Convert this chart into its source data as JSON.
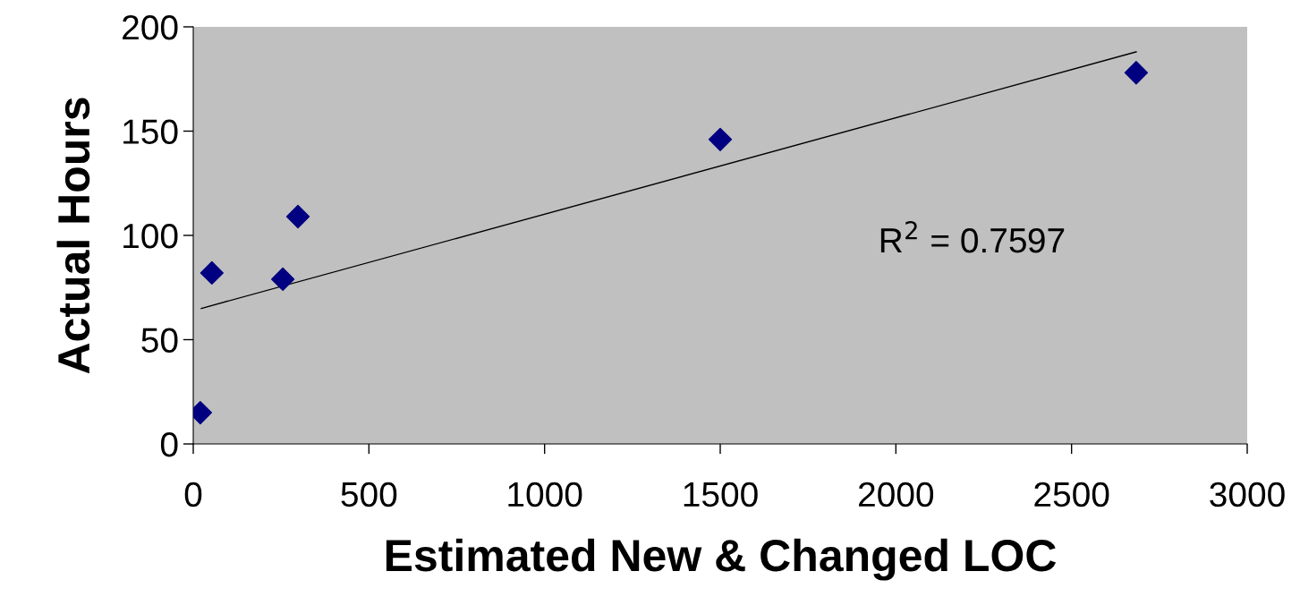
{
  "chart_data": {
    "type": "scatter",
    "xlabel": "Estimated New & Changed LOC",
    "ylabel": "Actual Hours",
    "series": [
      {
        "color": "#000080",
        "marker": "diamond",
        "x": [
          20,
          53,
          255,
          298,
          1500,
          2684
        ],
        "values": [
          15,
          82,
          79,
          109,
          146,
          178
        ]
      },
      {
        "type": "line",
        "color": "#000000",
        "marker": "none",
        "line_style": "solid",
        "x": [
          23,
          2684
        ],
        "values": [
          65,
          188
        ]
      }
    ],
    "annotations": [
      "R$^{2}$ = 0.7597"
    ],
    "xlim": [
      0,
      3000
    ],
    "xticks": [
      0,
      500,
      1000,
      1500,
      2000,
      2500,
      3000
    ],
    "ylim": [
      0,
      200
    ],
    "yticks": [
      0,
      50,
      100,
      150,
      200
    ],
    "grid": false,
    "legend": false
  }
}
